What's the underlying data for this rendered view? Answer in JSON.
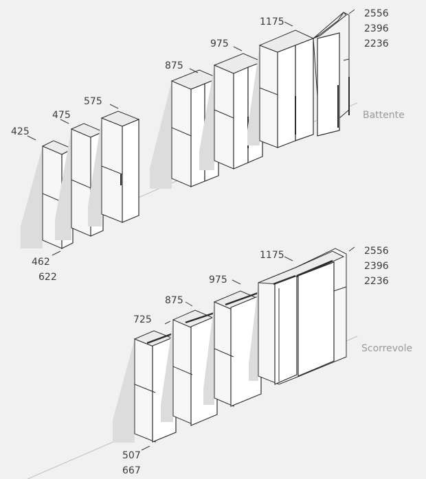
{
  "sections": [
    {
      "caption": "Battente",
      "widths": [
        "425",
        "475",
        "575",
        "875",
        "975",
        "1175"
      ],
      "heights": [
        "2556",
        "2396",
        "2236"
      ],
      "depths": [
        "462",
        "622"
      ]
    },
    {
      "caption": "Scorrevole",
      "widths": [
        "725",
        "875",
        "975",
        "1175"
      ],
      "heights": [
        "2556",
        "2396",
        "2236"
      ],
      "depths": [
        "507",
        "667"
      ]
    }
  ],
  "colors": {
    "background": "#f1f1f1",
    "line": "#2b2b2b",
    "shadow": "#d9d9d9",
    "panel_side": "#e6e6e6",
    "panel_front": "#ffffff"
  }
}
